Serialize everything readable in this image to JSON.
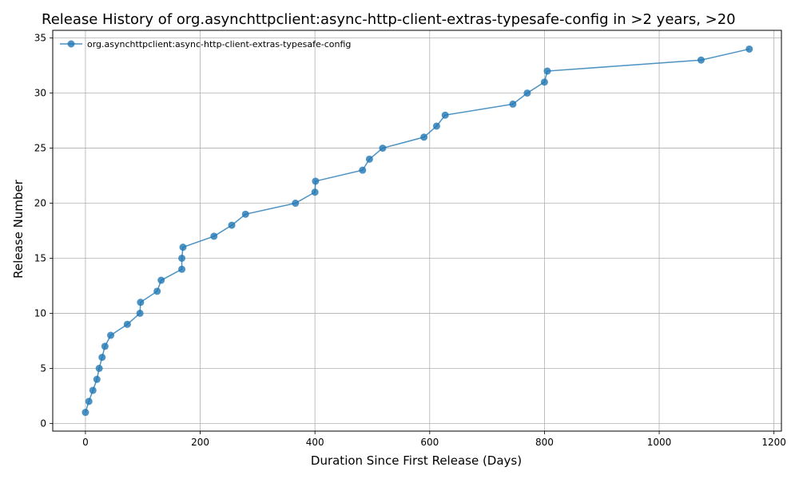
{
  "chart_data": {
    "type": "line",
    "title": "Release History of org.asynchttpclient:async-http-client-extras-typesafe-config in >2 years, >20",
    "xlabel": "Duration Since First Release (Days)",
    "ylabel": "Release Number",
    "xlim": [
      -57,
      1213
    ],
    "ylim": [
      -0.7,
      35.7
    ],
    "xticks": [
      0,
      200,
      400,
      600,
      800,
      1000,
      1200
    ],
    "yticks": [
      0,
      5,
      10,
      15,
      20,
      25,
      30,
      35
    ],
    "grid": true,
    "legend_position": "top-left",
    "color": "#1f77b4",
    "series": [
      {
        "name": "org.asynchttpclient:async-http-client-extras-typesafe-config",
        "x": [
          0,
          6,
          13,
          20,
          24,
          29,
          34,
          44,
          73,
          95,
          96,
          125,
          132,
          168,
          168,
          170,
          224,
          255,
          279,
          366,
          400,
          401,
          483,
          495,
          518,
          590,
          612,
          627,
          745,
          770,
          800,
          805,
          1073,
          1157
        ],
        "y": [
          1,
          2,
          3,
          4,
          5,
          6,
          7,
          8,
          9,
          10,
          11,
          12,
          13,
          14,
          15,
          16,
          17,
          18,
          19,
          20,
          21,
          22,
          23,
          24,
          25,
          26,
          27,
          28,
          29,
          30,
          31,
          32,
          33,
          34
        ]
      }
    ]
  }
}
